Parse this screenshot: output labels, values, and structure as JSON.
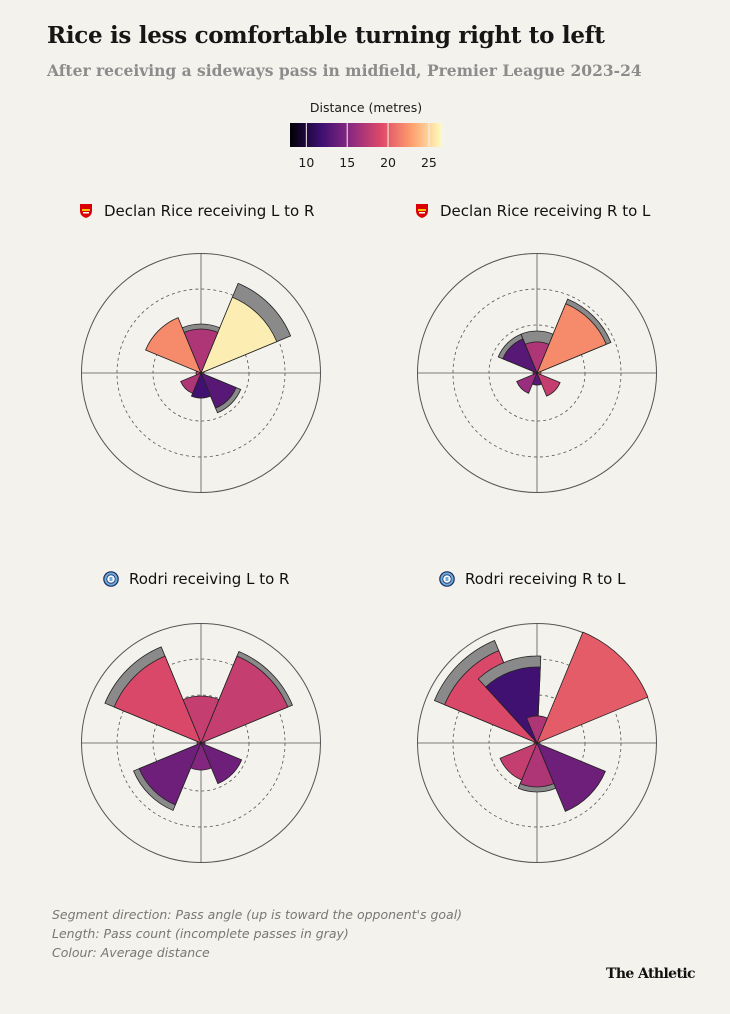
{
  "title": "Rice is less comfortable turning right to left",
  "subtitle": "After receiving a sideways pass in midfield, Premier League 2023-24",
  "legend": {
    "title": "Distance (metres)",
    "ticks": [
      "10",
      "15",
      "20",
      "25"
    ],
    "tick_values": [
      10,
      15,
      20,
      25
    ],
    "min": 8,
    "max": 26.6,
    "colors": [
      "#000004",
      "#3b0f70",
      "#8c2981",
      "#de4968",
      "#fe9f6d",
      "#fcfdbf"
    ]
  },
  "notes": [
    "Segment direction: Pass angle (up is toward the opponent's goal)",
    "Length: Pass count (incomplete passes in gray)",
    "Colour: Average distance"
  ],
  "brand": "The Athletic",
  "colors": {
    "incomplete": "#8a8a8a",
    "ring": "#555555",
    "background": "#f4f2ec",
    "arsenal": "#db0007",
    "mancity": "#6cabdd"
  },
  "chart_data": [
    {
      "type": "polar-bar",
      "title": "Declan Rice receiving L to R",
      "team_icon": "arsenal-crest-icon",
      "rmax": 12,
      "sectors": [
        {
          "direction": "N",
          "complete": 4.4,
          "incomplete": 4.9,
          "distance": 17
        },
        {
          "direction": "NE",
          "complete": 8.2,
          "incomplete": 9.7,
          "distance": 26
        },
        {
          "direction": "E",
          "complete": 0.3,
          "incomplete": 0.3,
          "distance": 20
        },
        {
          "direction": "SE",
          "complete": 3.8,
          "incomplete": 4.3,
          "distance": 13
        },
        {
          "direction": "S",
          "complete": 2.5,
          "incomplete": 2.5,
          "distance": 12
        },
        {
          "direction": "SW",
          "complete": 2.2,
          "incomplete": 2.2,
          "distance": 17
        },
        {
          "direction": "W",
          "complete": 0.5,
          "incomplete": 0.5,
          "distance": 18
        },
        {
          "direction": "NW",
          "complete": 6.0,
          "incomplete": 6.0,
          "distance": 22
        },
        {
          "direction": "N-inner",
          "complete": 0,
          "incomplete": 0,
          "distance": 0
        }
      ]
    },
    {
      "type": "polar-bar",
      "title": "Declan Rice receiving R to L",
      "team_icon": "arsenal-crest-icon",
      "rmax": 12,
      "sectors": [
        {
          "direction": "N",
          "complete": 3.1,
          "incomplete": 4.2,
          "distance": 17
        },
        {
          "direction": "NE",
          "complete": 7.5,
          "incomplete": 8.0,
          "distance": 22
        },
        {
          "direction": "E",
          "complete": 0.4,
          "incomplete": 0.4,
          "distance": 20
        },
        {
          "direction": "SE",
          "complete": 2.5,
          "incomplete": 2.5,
          "distance": 18
        },
        {
          "direction": "S",
          "complete": 1.2,
          "incomplete": 1.2,
          "distance": 13
        },
        {
          "direction": "SW",
          "complete": 2.2,
          "incomplete": 2.2,
          "distance": 16
        },
        {
          "direction": "W",
          "complete": 0.4,
          "incomplete": 0.4,
          "distance": 15
        },
        {
          "direction": "NW",
          "complete": 3.7,
          "incomplete": 4.2,
          "distance": 13
        }
      ]
    },
    {
      "type": "polar-bar",
      "title": "Rodri receiving L to R",
      "team_icon": "man-city-crest-icon",
      "rmax": 12,
      "sectors": [
        {
          "direction": "N",
          "complete": 4.7,
          "incomplete": 4.7,
          "distance": 18
        },
        {
          "direction": "NE",
          "complete": 9.4,
          "incomplete": 9.9,
          "distance": 18
        },
        {
          "direction": "E",
          "complete": 0.4,
          "incomplete": 0.4,
          "distance": 15
        },
        {
          "direction": "SE",
          "complete": 4.4,
          "incomplete": 4.4,
          "distance": 14
        },
        {
          "direction": "S",
          "complete": 2.7,
          "incomplete": 2.7,
          "distance": 15
        },
        {
          "direction": "SW",
          "complete": 6.7,
          "incomplete": 7.3,
          "distance": 14
        },
        {
          "direction": "W",
          "complete": 0.4,
          "incomplete": 0.4,
          "distance": 17
        },
        {
          "direction": "NW",
          "complete": 9.4,
          "incomplete": 10.4,
          "distance": 19
        }
      ]
    },
    {
      "type": "polar-bar",
      "title": "Rodri receiving R to L",
      "team_icon": "man-city-crest-icon",
      "rmax": 12,
      "sectors": [
        {
          "direction": "N",
          "complete": 2.7,
          "incomplete": 2.7,
          "distance": 17
        },
        {
          "direction": "NE",
          "complete": 12.0,
          "incomplete": 12.0,
          "distance": 20
        },
        {
          "direction": "E",
          "complete": 0.3,
          "incomplete": 0.3,
          "distance": 20
        },
        {
          "direction": "SE",
          "complete": 7.4,
          "incomplete": 7.4,
          "distance": 14
        },
        {
          "direction": "S",
          "complete": 4.4,
          "incomplete": 4.9,
          "distance": 17
        },
        {
          "direction": "SW",
          "complete": 4.0,
          "incomplete": 4.0,
          "distance": 18
        },
        {
          "direction": "W",
          "complete": 0.3,
          "incomplete": 0.3,
          "distance": 18
        },
        {
          "direction": "NW",
          "complete": 10.0,
          "incomplete": 11.1,
          "distance": 19
        },
        {
          "direction": "NNW",
          "complete": 7.6,
          "incomplete": 8.7,
          "distance": 12
        }
      ]
    }
  ]
}
